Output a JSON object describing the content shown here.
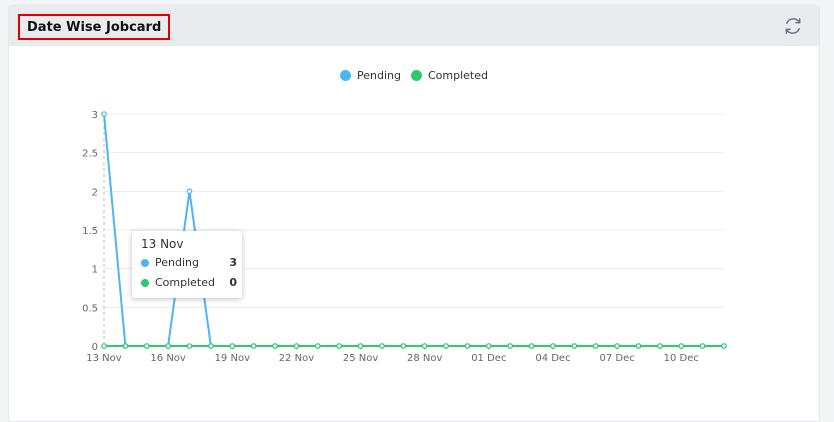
{
  "card": {
    "title": "Date Wise Jobcard",
    "refresh_icon": "refresh-icon"
  },
  "colors": {
    "pending": "#4db6f0",
    "completed": "#2ec86e",
    "title_border": "#e00000"
  },
  "legend": [
    {
      "label": "Pending",
      "color": "#4db6f0"
    },
    {
      "label": "Completed",
      "color": "#2ec86e"
    }
  ],
  "tooltip": {
    "title": "13 Nov",
    "rows": [
      {
        "label": "Pending",
        "value": "3"
      },
      {
        "label": "Completed",
        "value": "0"
      }
    ]
  },
  "chart_data": {
    "type": "line",
    "x": [
      "13 Nov",
      "14 Nov",
      "15 Nov",
      "16 Nov",
      "17 Nov",
      "18 Nov",
      "19 Nov",
      "20 Nov",
      "21 Nov",
      "22 Nov",
      "23 Nov",
      "24 Nov",
      "25 Nov",
      "26 Nov",
      "27 Nov",
      "28 Nov",
      "29 Nov",
      "30 Nov",
      "01 Dec",
      "02 Dec",
      "03 Dec",
      "04 Dec",
      "05 Dec",
      "06 Dec",
      "07 Dec",
      "08 Dec",
      "09 Dec",
      "10 Dec",
      "11 Dec",
      "12 Dec"
    ],
    "x_tick_labels": [
      "13 Nov",
      "16 Nov",
      "19 Nov",
      "22 Nov",
      "25 Nov",
      "28 Nov",
      "01 Dec",
      "04 Dec",
      "07 Dec",
      "10 Dec"
    ],
    "y_tick_labels": [
      "0",
      "0.5",
      "1",
      "1.5",
      "2",
      "2.5",
      "3"
    ],
    "ylim": [
      0,
      3
    ],
    "grid": true,
    "legend_position": "top-center",
    "series": [
      {
        "name": "Pending",
        "values": [
          3,
          0,
          0,
          0,
          2,
          0,
          0,
          0,
          0,
          0,
          0,
          0,
          0,
          0,
          0,
          0,
          0,
          0,
          0,
          0,
          0,
          0,
          0,
          0,
          0,
          0,
          0,
          0,
          0,
          0
        ]
      },
      {
        "name": "Completed",
        "values": [
          0,
          0,
          0,
          0,
          0,
          0,
          0,
          0,
          0,
          0,
          0,
          0,
          0,
          0,
          0,
          0,
          0,
          0,
          0,
          0,
          0,
          0,
          0,
          0,
          0,
          0,
          0,
          0,
          0,
          0
        ]
      }
    ]
  }
}
